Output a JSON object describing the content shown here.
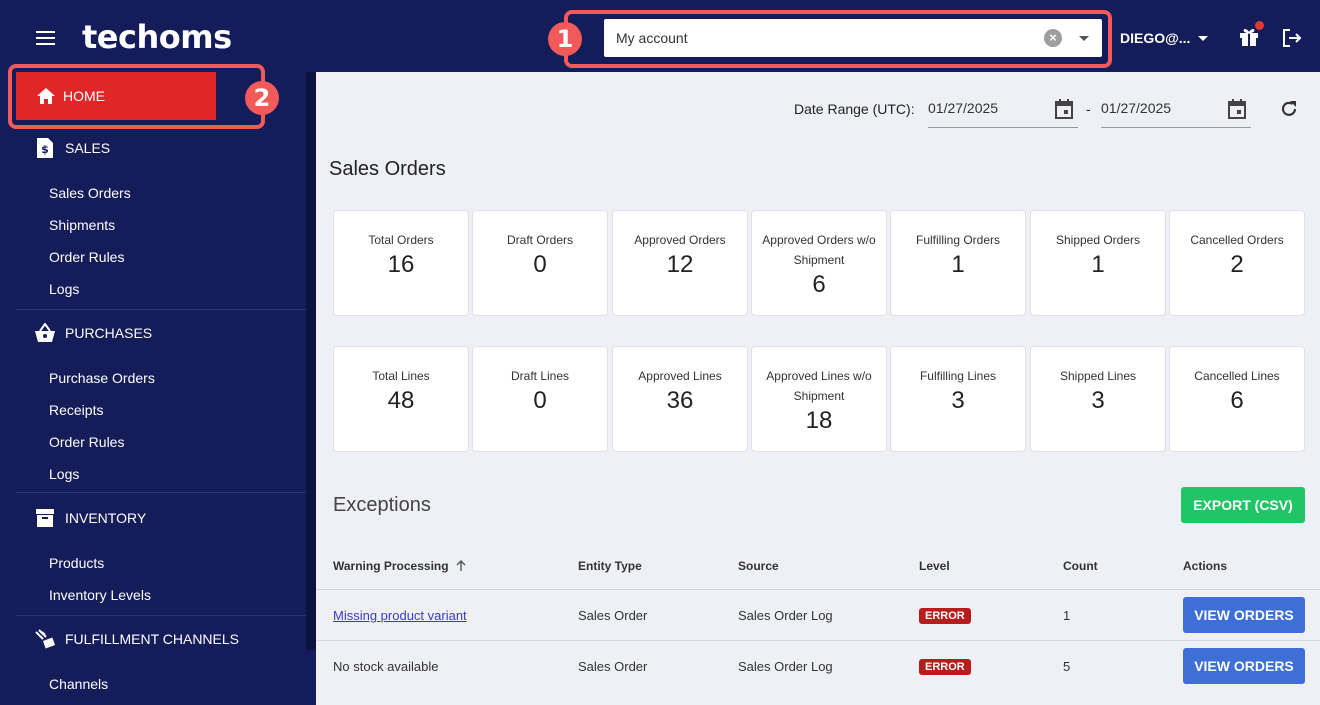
{
  "app": {
    "logo": "techoms"
  },
  "account_select": {
    "value": "My account",
    "clear_icon": "clear-icon",
    "caret_icon": "chevron-down-icon"
  },
  "badges": {
    "one": "1",
    "two": "2"
  },
  "user": {
    "label": "DIEGO@...",
    "gift_icon": "gift-icon",
    "logout_icon": "logout-icon"
  },
  "sidebar": {
    "home": "HOME",
    "sales": {
      "label": "SALES",
      "items": [
        "Sales Orders",
        "Shipments",
        "Order Rules",
        "Logs"
      ]
    },
    "purchases": {
      "label": "PURCHASES",
      "items": [
        "Purchase Orders",
        "Receipts",
        "Order Rules",
        "Logs"
      ]
    },
    "inventory": {
      "label": "INVENTORY",
      "items": [
        "Products",
        "Inventory Levels"
      ]
    },
    "fulfillment": {
      "label": "FULFILLMENT CHANNELS",
      "items": [
        "Channels"
      ]
    }
  },
  "date_range": {
    "label": "Date Range (UTC):",
    "from": "01/27/2025",
    "to": "01/27/2025",
    "separator": "-"
  },
  "sales_orders": {
    "heading": "Sales Orders",
    "orders": [
      {
        "label": "Total Orders",
        "value": "16"
      },
      {
        "label": "Draft Orders",
        "value": "0"
      },
      {
        "label": "Approved Orders",
        "value": "12"
      },
      {
        "label": "Approved Orders w/o Shipment",
        "value": "6"
      },
      {
        "label": "Fulfilling Orders",
        "value": "1"
      },
      {
        "label": "Shipped Orders",
        "value": "1"
      },
      {
        "label": "Cancelled Orders",
        "value": "2"
      }
    ],
    "lines": [
      {
        "label": "Total Lines",
        "value": "48"
      },
      {
        "label": "Draft Lines",
        "value": "0"
      },
      {
        "label": "Approved Lines",
        "value": "36"
      },
      {
        "label": "Approved Lines w/o Shipment",
        "value": "18"
      },
      {
        "label": "Fulfilling Lines",
        "value": "3"
      },
      {
        "label": "Shipped Lines",
        "value": "3"
      },
      {
        "label": "Cancelled Lines",
        "value": "6"
      }
    ]
  },
  "exceptions": {
    "heading": "Exceptions",
    "export_label": "EXPORT (CSV)",
    "columns": [
      "Warning Processing",
      "Entity Type",
      "Source",
      "Level",
      "Count",
      "Actions"
    ],
    "rows": [
      {
        "warning": "Missing product variant",
        "entity": "Sales Order",
        "source": "Sales Order Log",
        "level": "ERROR",
        "count": "1",
        "action": "VIEW ORDERS"
      },
      {
        "warning": "No stock available",
        "entity": "Sales Order",
        "source": "Sales Order Log",
        "level": "ERROR",
        "count": "5",
        "action": "VIEW ORDERS"
      }
    ]
  },
  "colors": {
    "nav": "#141c5a",
    "home_active": "#e02626",
    "annotation": "#f25a5a",
    "export": "#20c565",
    "view_orders": "#3d6fd6",
    "error": "#b91c1c"
  }
}
